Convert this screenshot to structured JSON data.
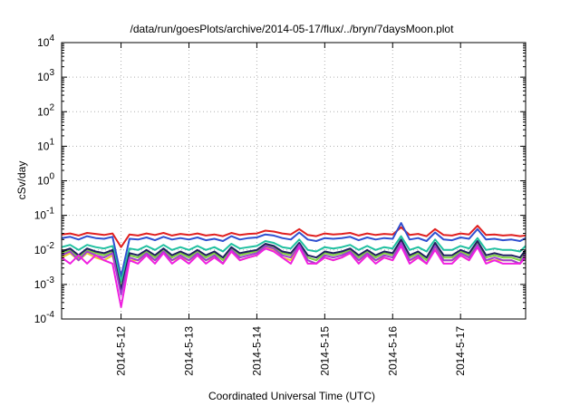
{
  "chart_data": {
    "type": "line",
    "title": "/data/run/goesPlots/archive/2014-05-17/flux/../bryn/7daysMoon.plot",
    "xlabel": "Coordinated Universal Time (UTC)",
    "ylabel": "cSv/day",
    "y_scale": "log",
    "ylim": [
      0.0001,
      10000
    ],
    "xlim": [
      "2014-05-11 03:00",
      "2014-05-17 23:00"
    ],
    "x_ticks": [
      "2014-5-12",
      "2014-5-13",
      "2014-5-14",
      "2014-5-15",
      "2014-5-16",
      "2014-5-17"
    ],
    "y_ticks": [
      {
        "base": "10",
        "exp": "-4",
        "value": 0.0001
      },
      {
        "base": "10",
        "exp": "-3",
        "value": 0.001
      },
      {
        "base": "10",
        "exp": "-2",
        "value": 0.01
      },
      {
        "base": "10",
        "exp": "-1",
        "value": 0.1
      },
      {
        "base": "10",
        "exp": "0",
        "value": 1
      },
      {
        "base": "10",
        "exp": "1",
        "value": 10
      },
      {
        "base": "10",
        "exp": "2",
        "value": 100
      },
      {
        "base": "10",
        "exp": "3",
        "value": 1000
      },
      {
        "base": "10",
        "exp": "4",
        "value": 10000
      }
    ],
    "grid": true,
    "legend": "none",
    "x": [
      "2014-05-11 03:00",
      "2014-05-11 06:00",
      "2014-05-11 09:00",
      "2014-05-11 12:00",
      "2014-05-11 15:00",
      "2014-05-11 18:00",
      "2014-05-11 21:00",
      "2014-05-12 00:00",
      "2014-05-12 03:00",
      "2014-05-12 06:00",
      "2014-05-12 09:00",
      "2014-05-12 12:00",
      "2014-05-12 15:00",
      "2014-05-12 18:00",
      "2014-05-12 21:00",
      "2014-05-13 00:00",
      "2014-05-13 03:00",
      "2014-05-13 06:00",
      "2014-05-13 09:00",
      "2014-05-13 12:00",
      "2014-05-13 15:00",
      "2014-05-13 18:00",
      "2014-05-13 21:00",
      "2014-05-14 00:00",
      "2014-05-14 03:00",
      "2014-05-14 06:00",
      "2014-05-14 09:00",
      "2014-05-14 12:00",
      "2014-05-14 15:00",
      "2014-05-14 18:00",
      "2014-05-14 21:00",
      "2014-05-15 00:00",
      "2014-05-15 03:00",
      "2014-05-15 06:00",
      "2014-05-15 09:00",
      "2014-05-15 12:00",
      "2014-05-15 15:00",
      "2014-05-15 18:00",
      "2014-05-15 21:00",
      "2014-05-16 00:00",
      "2014-05-16 03:00",
      "2014-05-16 06:00",
      "2014-05-16 09:00",
      "2014-05-16 12:00",
      "2014-05-16 15:00",
      "2014-05-16 18:00",
      "2014-05-16 21:00",
      "2014-05-17 00:00",
      "2014-05-17 03:00",
      "2014-05-17 06:00",
      "2014-05-17 09:00",
      "2014-05-17 12:00",
      "2014-05-17 15:00",
      "2014-05-17 18:00",
      "2014-05-17 21:00",
      "2014-05-17 23:00"
    ],
    "series": [
      {
        "color": "#e02020",
        "values": [
          0.028,
          0.03,
          0.026,
          0.031,
          0.029,
          0.027,
          0.03,
          0.012,
          0.028,
          0.026,
          0.03,
          0.027,
          0.031,
          0.026,
          0.029,
          0.027,
          0.03,
          0.026,
          0.028,
          0.025,
          0.031,
          0.027,
          0.029,
          0.03,
          0.036,
          0.034,
          0.03,
          0.028,
          0.04,
          0.027,
          0.025,
          0.03,
          0.028,
          0.029,
          0.031,
          0.026,
          0.03,
          0.027,
          0.029,
          0.028,
          0.045,
          0.027,
          0.029,
          0.025,
          0.04,
          0.027,
          0.026,
          0.03,
          0.028,
          0.05,
          0.027,
          0.028,
          0.026,
          0.027,
          0.025,
          0.026
        ]
      },
      {
        "color": "#3050d0",
        "values": [
          0.022,
          0.024,
          0.02,
          0.025,
          0.022,
          0.021,
          0.024,
          0.0017,
          0.021,
          0.02,
          0.023,
          0.019,
          0.024,
          0.02,
          0.022,
          0.02,
          0.023,
          0.019,
          0.021,
          0.018,
          0.025,
          0.02,
          0.022,
          0.023,
          0.028,
          0.026,
          0.022,
          0.02,
          0.032,
          0.02,
          0.018,
          0.022,
          0.021,
          0.022,
          0.024,
          0.019,
          0.023,
          0.02,
          0.022,
          0.021,
          0.06,
          0.02,
          0.022,
          0.018,
          0.032,
          0.02,
          0.019,
          0.023,
          0.021,
          0.04,
          0.02,
          0.021,
          0.019,
          0.02,
          0.018,
          0.022
        ]
      },
      {
        "color": "#20c0a0",
        "values": [
          0.012,
          0.014,
          0.01,
          0.014,
          0.012,
          0.011,
          0.013,
          0.0012,
          0.011,
          0.01,
          0.013,
          0.01,
          0.014,
          0.01,
          0.012,
          0.01,
          0.013,
          0.01,
          0.012,
          0.009,
          0.015,
          0.011,
          0.012,
          0.013,
          0.018,
          0.016,
          0.012,
          0.011,
          0.02,
          0.01,
          0.009,
          0.012,
          0.011,
          0.012,
          0.014,
          0.01,
          0.013,
          0.01,
          0.012,
          0.011,
          0.025,
          0.01,
          0.012,
          0.009,
          0.02,
          0.01,
          0.01,
          0.013,
          0.011,
          0.022,
          0.01,
          0.011,
          0.01,
          0.01,
          0.009,
          0.013
        ]
      },
      {
        "color": "#80d040",
        "values": [
          0.008,
          0.01,
          0.006,
          0.01,
          0.008,
          0.007,
          0.009,
          0.0008,
          0.007,
          0.006,
          0.009,
          0.006,
          0.01,
          0.006,
          0.008,
          0.006,
          0.009,
          0.006,
          0.008,
          0.005,
          0.011,
          0.007,
          0.008,
          0.009,
          0.014,
          0.012,
          0.008,
          0.007,
          0.015,
          0.006,
          0.005,
          0.008,
          0.007,
          0.008,
          0.01,
          0.006,
          0.009,
          0.006,
          0.008,
          0.007,
          0.018,
          0.006,
          0.008,
          0.005,
          0.015,
          0.006,
          0.006,
          0.009,
          0.007,
          0.016,
          0.006,
          0.007,
          0.006,
          0.006,
          0.005,
          0.009
        ]
      },
      {
        "color": "#e8d030",
        "values": [
          0.006,
          0.008,
          0.005,
          0.008,
          0.006,
          0.005,
          0.007,
          0.0006,
          0.005,
          0.005,
          0.007,
          0.005,
          0.008,
          0.005,
          0.006,
          0.005,
          0.007,
          0.005,
          0.006,
          0.004,
          0.009,
          0.005,
          0.006,
          0.007,
          0.012,
          0.01,
          0.006,
          0.005,
          0.013,
          0.005,
          0.004,
          0.006,
          0.005,
          0.006,
          0.008,
          0.005,
          0.007,
          0.005,
          0.006,
          0.005,
          0.015,
          0.005,
          0.006,
          0.004,
          0.012,
          0.005,
          0.005,
          0.007,
          0.005,
          0.013,
          0.005,
          0.005,
          0.005,
          0.005,
          0.004,
          0.007
        ]
      },
      {
        "color": "#202060",
        "values": [
          0.009,
          0.011,
          0.007,
          0.011,
          0.009,
          0.008,
          0.01,
          0.0007,
          0.008,
          0.007,
          0.01,
          0.007,
          0.011,
          0.007,
          0.009,
          0.007,
          0.01,
          0.007,
          0.009,
          0.006,
          0.012,
          0.008,
          0.009,
          0.01,
          0.015,
          0.013,
          0.009,
          0.008,
          0.016,
          0.007,
          0.006,
          0.009,
          0.008,
          0.009,
          0.011,
          0.007,
          0.01,
          0.007,
          0.009,
          0.008,
          0.02,
          0.007,
          0.009,
          0.006,
          0.016,
          0.007,
          0.007,
          0.01,
          0.008,
          0.018,
          0.007,
          0.008,
          0.007,
          0.007,
          0.006,
          0.01
        ]
      },
      {
        "color": "#a040d0",
        "values": [
          0.007,
          0.009,
          0.005,
          0.009,
          0.007,
          0.006,
          0.008,
          0.0005,
          0.006,
          0.005,
          0.008,
          0.005,
          0.009,
          0.005,
          0.007,
          0.005,
          0.008,
          0.005,
          0.007,
          0.004,
          0.01,
          0.006,
          0.007,
          0.008,
          0.013,
          0.011,
          0.007,
          0.006,
          0.014,
          0.005,
          0.004,
          0.007,
          0.006,
          0.007,
          0.009,
          0.005,
          0.008,
          0.005,
          0.007,
          0.006,
          0.016,
          0.005,
          0.007,
          0.004,
          0.013,
          0.005,
          0.005,
          0.008,
          0.006,
          0.014,
          0.005,
          0.006,
          0.005,
          0.005,
          0.004,
          0.008
        ]
      },
      {
        "color": "#f020e0",
        "values": [
          0.006,
          0.004,
          0.007,
          0.004,
          0.007,
          0.005,
          0.004,
          0.00022,
          0.005,
          0.004,
          0.007,
          0.004,
          0.008,
          0.004,
          0.006,
          0.004,
          0.007,
          0.004,
          0.006,
          0.004,
          0.009,
          0.005,
          0.006,
          0.007,
          0.011,
          0.009,
          0.006,
          0.004,
          0.012,
          0.004,
          0.004,
          0.006,
          0.005,
          0.006,
          0.008,
          0.004,
          0.007,
          0.004,
          0.006,
          0.005,
          0.013,
          0.004,
          0.006,
          0.004,
          0.01,
          0.004,
          0.004,
          0.007,
          0.005,
          0.012,
          0.004,
          0.005,
          0.004,
          0.004,
          0.004,
          0.006
        ]
      }
    ]
  }
}
